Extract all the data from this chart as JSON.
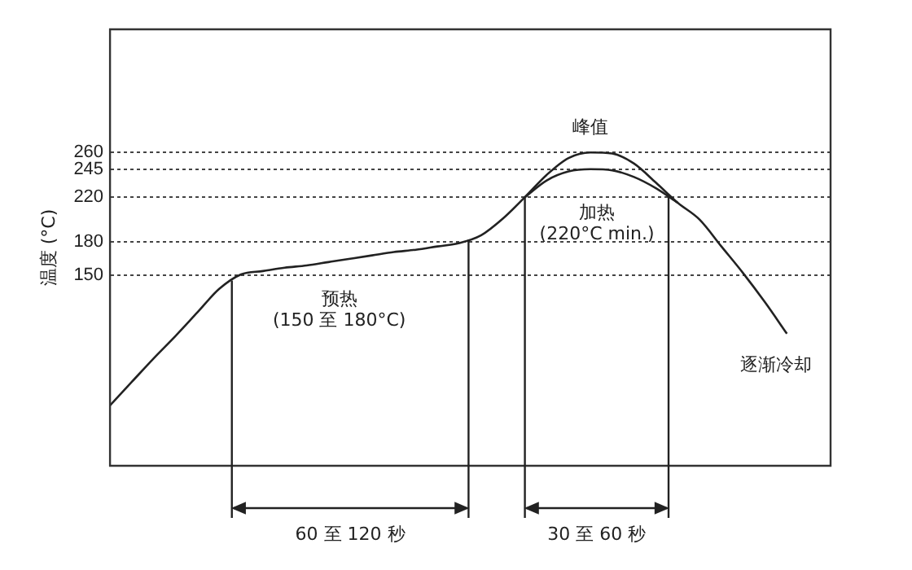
{
  "chart_data": {
    "type": "line",
    "ylabel": "温度 (°C)",
    "categories": [
      null,
      null,
      null,
      null,
      null,
      null,
      null,
      null,
      null,
      null,
      null,
      null,
      null,
      null,
      null,
      null,
      null,
      null,
      null,
      null,
      null,
      null,
      null,
      null,
      null,
      null,
      null,
      null,
      null,
      null,
      null,
      null,
      null,
      null
    ],
    "series": [
      {
        "color": "#222222",
        "values": [
          34,
          55,
          76,
          96,
          117,
          138,
          151,
          154,
          157,
          159,
          162,
          165,
          168,
          171,
          173,
          176,
          179,
          186,
          201,
          220,
          240,
          255,
          260,
          259,
          250,
          233,
          215,
          200,
          176,
          152,
          126,
          98,
          null,
          null
        ]
      },
      {
        "color": "#222222",
        "values": [
          null,
          null,
          null,
          null,
          null,
          null,
          null,
          null,
          null,
          null,
          null,
          null,
          null,
          null,
          null,
          null,
          null,
          null,
          null,
          220,
          235,
          243,
          245,
          244,
          238,
          228,
          215,
          null,
          null,
          null,
          null,
          null,
          null,
          null
        ]
      }
    ],
    "ylim": [
      -20,
      370
    ],
    "yticks": [
      150,
      180,
      220,
      245,
      260
    ],
    "grid": "y",
    "tick_labels": "y",
    "marker": "none",
    "line_style": "solid",
    "legend": false,
    "annotations": [
      "峰值",
      "加热\n(220°C min.)",
      "预热\n(150 至 180°C)",
      "逐渐冷却",
      "60 至 120 秒",
      "30 至 60 秒"
    ]
  }
}
